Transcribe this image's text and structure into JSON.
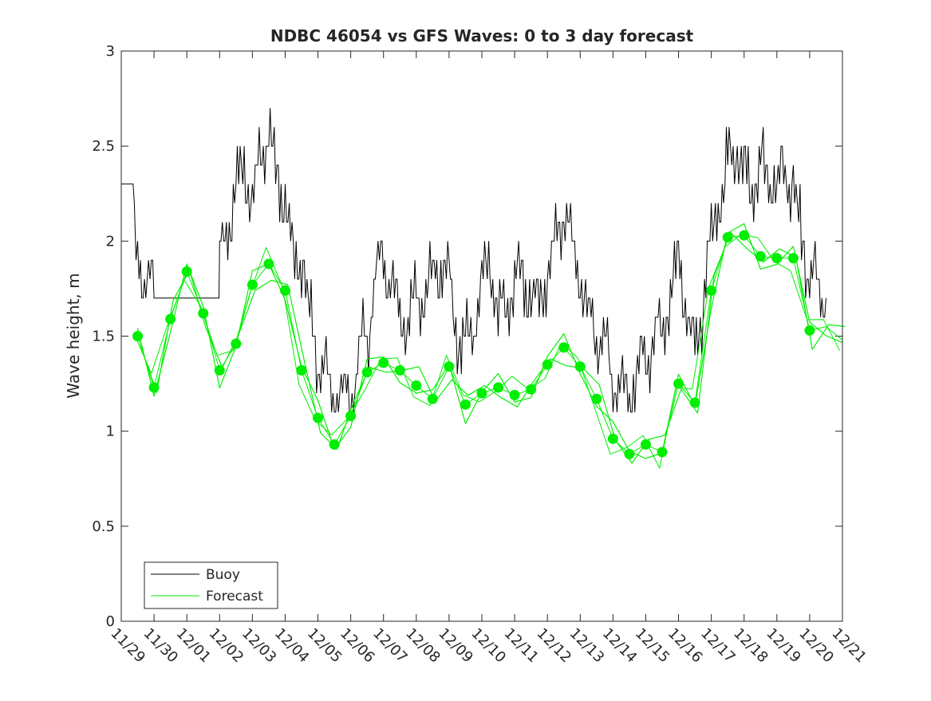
{
  "chart_data": {
    "type": "line",
    "title": "NDBC 46054 vs GFS Waves: 0 to 3 day forecast",
    "xlabel": "",
    "ylabel": "Wave height, m",
    "ylim": [
      0,
      3
    ],
    "yticks": [
      "0",
      "0.5",
      "1",
      "1.5",
      "2",
      "2.5",
      "3"
    ],
    "xlim_days": [
      0,
      22
    ],
    "xtick_labels": [
      "11/29",
      "11/30",
      "12/01",
      "12/02",
      "12/03",
      "12/04",
      "12/05",
      "12/06",
      "12/07",
      "12/08",
      "12/09",
      "12/10",
      "12/11",
      "12/12",
      "12/13",
      "12/14",
      "12/15",
      "12/16",
      "12/17",
      "12/18",
      "12/19",
      "12/20",
      "12/21"
    ],
    "grid": false,
    "legend": {
      "placement": "bottom-left",
      "entries": [
        "Buoy",
        "Forecast"
      ]
    },
    "colors": {
      "buoy": "#000000",
      "forecast": "#00ee00"
    },
    "buoy": {
      "x_days": [
        0,
        0.4,
        0.45,
        0.5,
        0.75,
        1.0,
        1.5,
        2.0,
        2.5,
        2.98,
        3.0,
        3.25,
        3.5,
        3.75,
        4.0,
        4.25,
        4.5,
        4.75,
        5.0,
        5.25,
        5.5,
        5.75,
        6.0,
        6.25,
        6.5,
        6.75,
        7.0,
        7.25,
        7.5,
        7.75,
        8.0,
        8.25,
        8.5,
        8.75,
        9.0,
        9.25,
        9.5,
        9.75,
        10.0,
        10.25,
        10.5,
        10.75,
        11.0,
        11.25,
        11.5,
        11.75,
        12.0,
        12.25,
        12.5,
        12.75,
        13.0,
        13.25,
        13.5,
        13.75,
        14.0,
        14.25,
        14.5,
        14.75,
        15.0,
        15.25,
        15.5,
        15.75,
        16.0,
        16.25,
        16.5,
        16.75,
        17.0,
        17.25,
        17.5,
        17.75,
        18.0,
        18.25,
        18.5,
        18.75,
        19.0,
        19.25,
        19.5,
        19.75,
        20.0,
        20.25,
        20.5,
        20.75,
        21.0,
        21.25,
        21.5
      ],
      "values": [
        2.3,
        2.3,
        2.0,
        1.95,
        1.8,
        1.7,
        1.7,
        1.7,
        1.7,
        1.7,
        1.9,
        2.0,
        2.3,
        2.4,
        2.2,
        2.5,
        2.6,
        2.3,
        2.2,
        1.9,
        1.9,
        1.6,
        1.4,
        1.3,
        1.2,
        1.2,
        1.2,
        1.4,
        1.5,
        1.8,
        1.9,
        1.8,
        1.6,
        1.6,
        1.65,
        1.7,
        1.8,
        1.9,
        1.8,
        1.5,
        1.45,
        1.5,
        1.8,
        1.9,
        1.6,
        1.7,
        1.8,
        1.8,
        1.7,
        1.7,
        1.8,
        2.0,
        2.2,
        2.0,
        1.8,
        1.6,
        1.5,
        1.4,
        1.3,
        1.2,
        1.2,
        1.3,
        1.4,
        1.5,
        1.5,
        1.7,
        1.9,
        1.6,
        1.4,
        1.7,
        2.0,
        2.2,
        2.4,
        2.5,
        2.35,
        2.3,
        2.4,
        2.3,
        2.3,
        2.35,
        2.3,
        2.0,
        1.85,
        1.75,
        1.7
      ]
    },
    "forecast_points": {
      "x_days": [
        0.5,
        1.0,
        1.5,
        2.0,
        2.5,
        3.0,
        3.5,
        4.0,
        4.5,
        5.0,
        5.5,
        6.0,
        6.5,
        7.0,
        7.5,
        8.0,
        8.5,
        9.0,
        9.5,
        10.0,
        10.5,
        11.0,
        11.5,
        12.0,
        12.5,
        13.0,
        13.5,
        14.0,
        14.5,
        15.0,
        15.5,
        16.0,
        16.5,
        17.0,
        17.5,
        18.0,
        18.5,
        19.0,
        19.5,
        20.0,
        20.5,
        21.0
      ],
      "values": [
        1.5,
        1.23,
        1.59,
        1.84,
        1.62,
        1.32,
        1.46,
        1.77,
        1.88,
        1.74,
        1.32,
        1.07,
        0.93,
        1.08,
        1.31,
        1.36,
        1.32,
        1.24,
        1.17,
        1.34,
        1.14,
        1.2,
        1.23,
        1.19,
        1.22,
        1.35,
        1.44,
        1.34,
        1.17,
        0.96,
        0.88,
        0.93,
        0.89,
        1.25,
        1.15,
        1.74,
        2.02,
        2.03,
        1.92,
        1.91,
        1.91,
        1.53
      ]
    },
    "forecast_line_tail": {
      "x_days": [
        21.5,
        22.0
      ],
      "values": [
        1.55,
        1.48
      ]
    }
  }
}
